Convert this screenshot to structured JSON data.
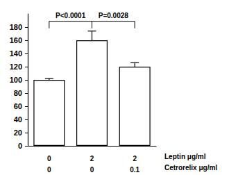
{
  "chart_data": {
    "type": "bar",
    "categories": [
      "0",
      "2",
      "2"
    ],
    "category_label": "Leptin μg/ml",
    "categories2": [
      "0",
      "0",
      "0.1"
    ],
    "category2_label": "Cetrorelix μg/ml",
    "values": [
      100,
      160,
      120
    ],
    "errors": [
      2,
      14,
      6
    ],
    "color": "#ffffff",
    "ylim": [
      0,
      200
    ],
    "yticks": [
      0,
      20,
      40,
      60,
      80,
      100,
      120,
      140,
      160,
      180
    ],
    "grid": false,
    "annotations": [
      {
        "text": "P<0.0001",
        "from": 0,
        "to": 1
      },
      {
        "text": "P=0.0028",
        "from": 1,
        "to": 2
      }
    ]
  }
}
